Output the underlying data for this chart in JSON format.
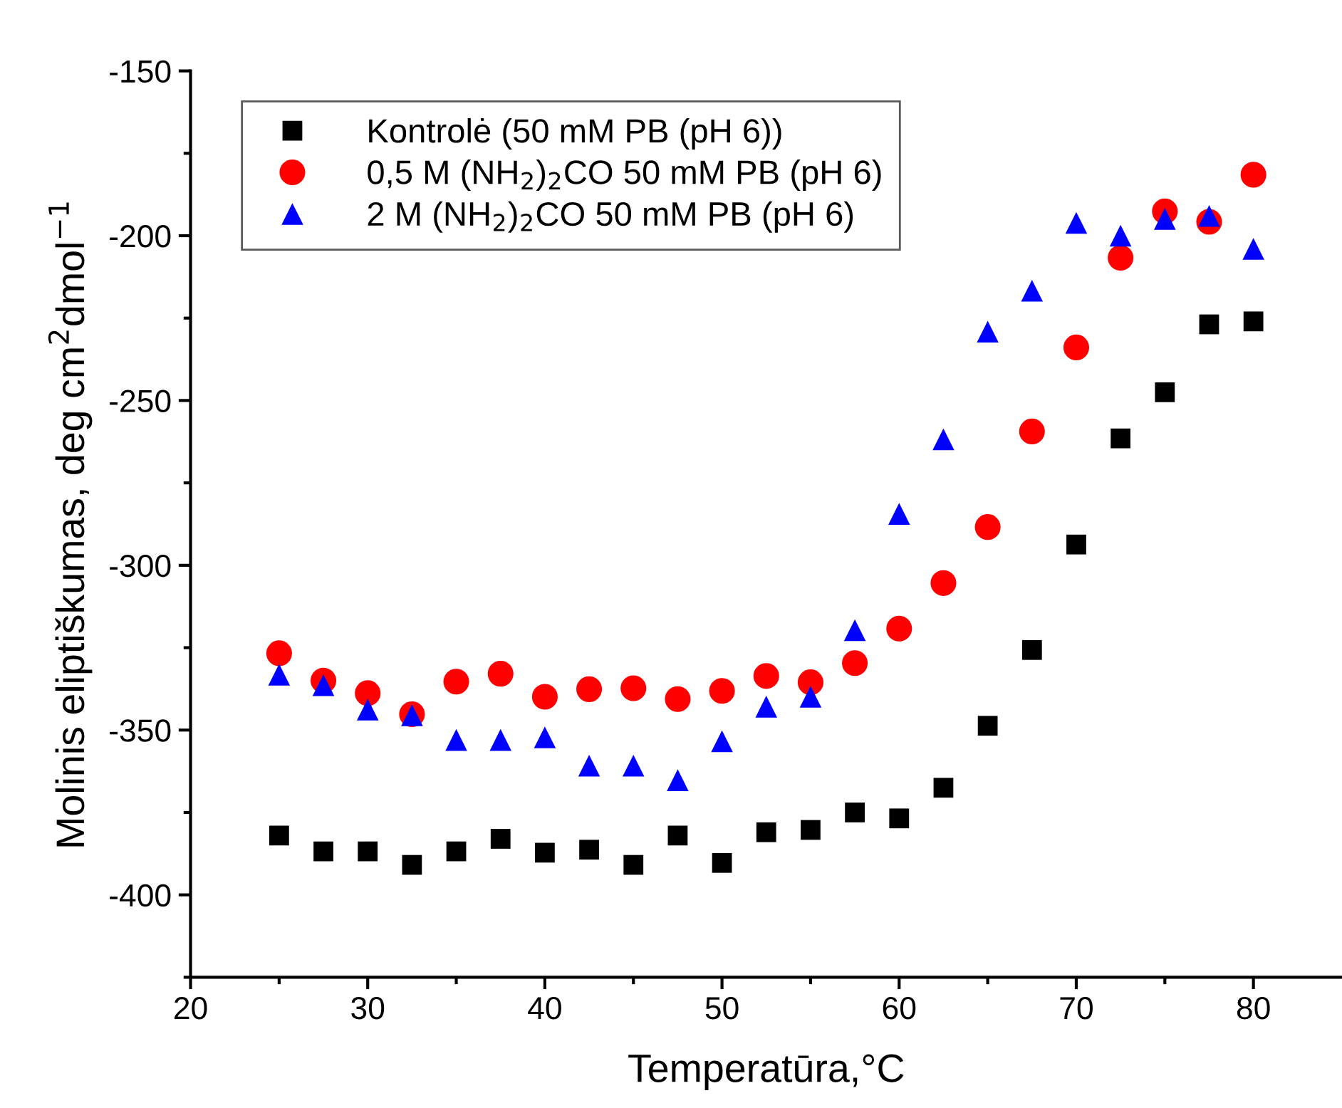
{
  "chart_data": {
    "type": "scatter",
    "xlabel": "Temperatūra,°C",
    "ylabel": "Molinis eliptiškumas, deg cm$^{2}$dmol$^{−1}$",
    "x": [
      25,
      27.5,
      30,
      32.5,
      35,
      37.5,
      40,
      42.5,
      45,
      47.5,
      50,
      52.5,
      55,
      57.5,
      60,
      62.5,
      65,
      67.5,
      70,
      72.5,
      75,
      77.5,
      80
    ],
    "series": [
      {
        "name": "Kontrolė (50 mM PB (pH 6))",
        "color": "#000000",
        "marker": "square",
        "values": [
          -382,
          -386.8,
          -386.8,
          -390.9,
          -386.8,
          -383,
          -387.2,
          -386.3,
          -390.9,
          -382,
          -390.3,
          -381,
          -380.3,
          -375,
          -376.8,
          -367.5,
          -348.7,
          -325.7,
          -293.7,
          -261.5,
          -247.5,
          -226.9,
          -226
        ]
      },
      {
        "name": "0,5 M (NH$_{2}$)$_{2}$CO 50 mM PB (pH 6)",
        "color": "#ff0000",
        "marker": "circle",
        "values": [
          -326.7,
          -335,
          -338.8,
          -345.2,
          -335.3,
          -332.9,
          -339.9,
          -337.6,
          -337.3,
          -340.6,
          -338.1,
          -333.6,
          -335.5,
          -329.7,
          -319.2,
          -305.4,
          -288.4,
          -259.4,
          -233.9,
          -206.7,
          -192.6,
          -195.8,
          -181.5
        ]
      },
      {
        "name": "2 M (NH$_{2}$)$_{2}$CO 50 mM PB (pH 6)",
        "color": "#0000ff",
        "marker": "triangle",
        "values": [
          -333.2,
          -336.4,
          -343.8,
          -345.5,
          -353,
          -353,
          -352.2,
          -360.8,
          -360.8,
          -365.2,
          -353.4,
          -342.9,
          -339.9,
          -319.7,
          -284.4,
          -261.8,
          -229.1,
          -216.7,
          -196.1,
          -200,
          -194.9,
          -194,
          -204
        ]
      }
    ],
    "xlim": [
      20,
      85
    ],
    "xticks": [
      20,
      {
        "value": 25,
        "label": null
      },
      30,
      {
        "value": 35,
        "label": null
      },
      40,
      {
        "value": 45,
        "label": null
      },
      50,
      {
        "value": 55,
        "label": null
      },
      60,
      {
        "value": 65,
        "label": null
      },
      70,
      {
        "value": 75,
        "label": null
      },
      80
    ],
    "ylim": [
      -425,
      -150
    ],
    "yticks": [
      {
        "value": -425,
        "label": null
      },
      -400,
      {
        "value": -375,
        "label": null
      },
      -350,
      {
        "value": -325,
        "label": null
      },
      -300,
      {
        "value": -275,
        "label": null
      },
      -250,
      {
        "value": -225,
        "label": null
      },
      -200,
      {
        "value": -175,
        "label": null
      },
      -150
    ],
    "grid": false,
    "legend": "top left"
  }
}
